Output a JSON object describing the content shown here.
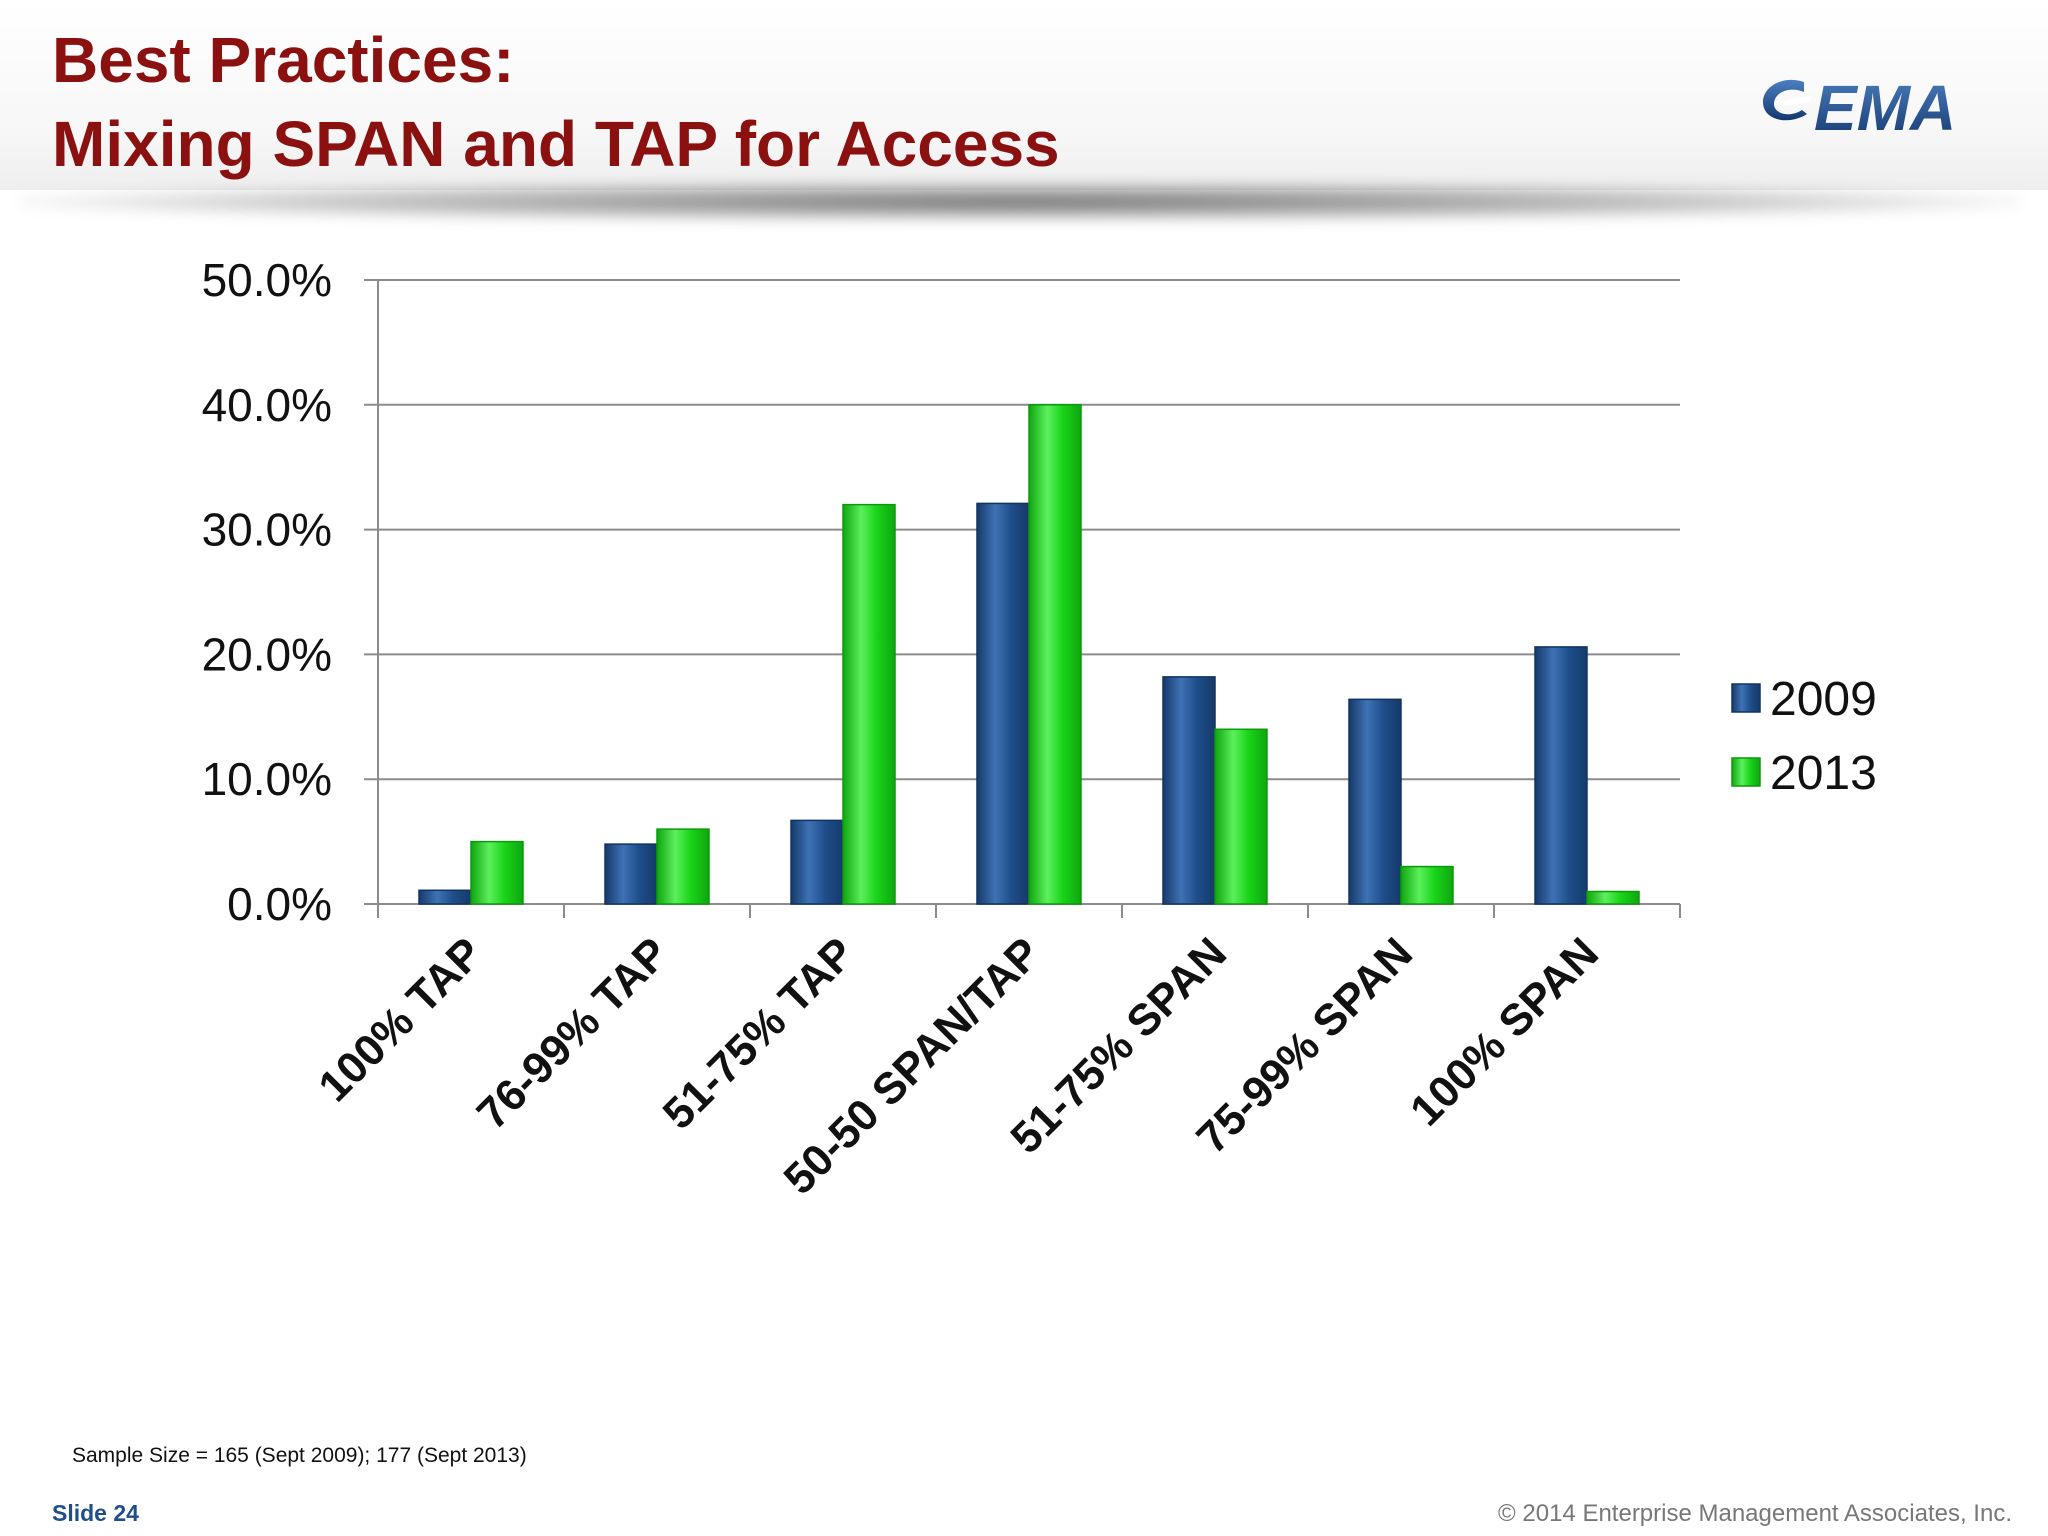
{
  "slide": {
    "title_line1": "Best Practices:",
    "title_line2": "Mixing SPAN and TAP for Access",
    "logo_text": "EMA",
    "footnote": "Sample Size = 165 (Sept 2009); 177 (Sept 2013)",
    "slide_label": "Slide",
    "slide_number": "24",
    "copyright": "© 2014 Enterprise Management Associates, Inc."
  },
  "colors": {
    "title": "#8b1111",
    "series_2009": "#1f4e8a",
    "series_2013": "#18d418",
    "logo": "#1f4e8a"
  },
  "chart_data": {
    "type": "bar",
    "categories": [
      "100% TAP",
      "76-99% TAP",
      "51-75% TAP",
      "50-50 SPAN/TAP",
      "51-75% SPAN",
      "75-99% SPAN",
      "100% SPAN"
    ],
    "series": [
      {
        "name": "2009",
        "values": [
          1.1,
          4.8,
          6.7,
          32.1,
          18.2,
          16.4,
          20.6
        ],
        "color": "#1f4e8a"
      },
      {
        "name": "2013",
        "values": [
          5.0,
          6.0,
          32.0,
          40.0,
          14.0,
          3.0,
          1.0
        ],
        "color": "#18d418"
      }
    ],
    "yticks": [
      "0.0%",
      "10.0%",
      "20.0%",
      "30.0%",
      "40.0%",
      "50.0%"
    ],
    "ylim": [
      0,
      50
    ],
    "grid": true,
    "legend_position": "right"
  }
}
